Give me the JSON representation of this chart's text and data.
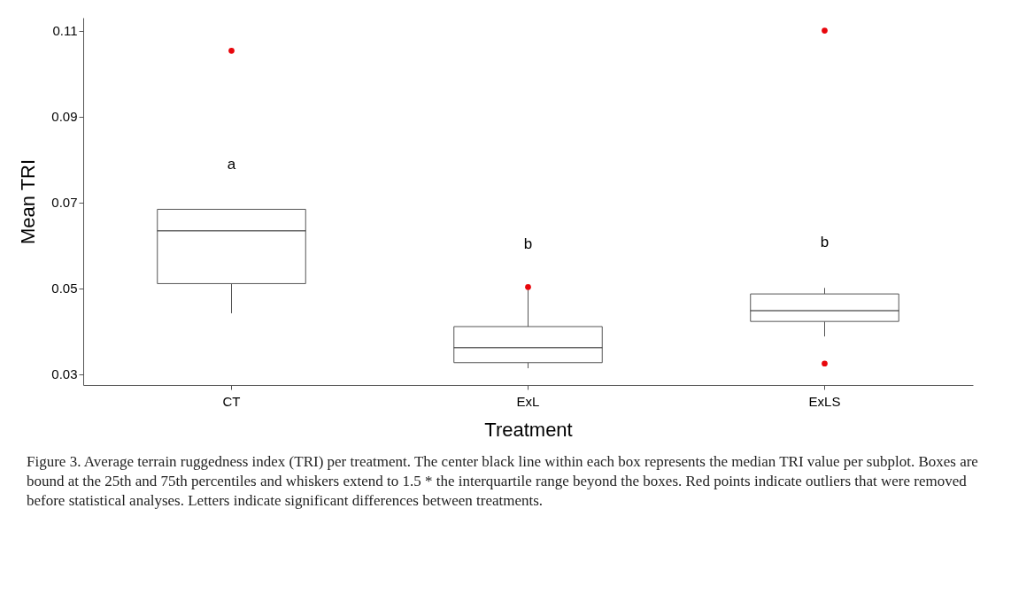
{
  "chart_data": {
    "type": "box",
    "xlabel": "Treatment",
    "ylabel": "Mean TRI",
    "categories": [
      "CT",
      "ExL",
      "ExLS"
    ],
    "boxes": [
      {
        "low": 0.0442,
        "q1": 0.0511,
        "median": 0.0634,
        "q3": 0.0684,
        "high": 0.0684,
        "outliers": [
          0.1053
        ]
      },
      {
        "low": 0.0314,
        "q1": 0.0327,
        "median": 0.0362,
        "q3": 0.0411,
        "high": 0.0497,
        "outliers": [
          0.0503
        ]
      },
      {
        "low": 0.0388,
        "q1": 0.0423,
        "median": 0.0448,
        "q3": 0.0487,
        "high": 0.0501,
        "outliers": [
          0.11,
          0.0325
        ]
      }
    ],
    "ylim": [
      0.0275,
      0.113
    ],
    "yticks": [
      0.03,
      0.05,
      0.07,
      0.09,
      0.11
    ],
    "grid": false,
    "annotations": [
      "a",
      "b",
      "b",
      "Figure 3. Average terrain ruggedness index (TRI) per treatment. The center black line within each box represents the median TRI value per subplot. Boxes are bound at the 25th and 75th percentiles and whiskers extend to 1.5 * the interquartile range beyond the boxes. Red points indicate outliers that were removed before statistical analyses. Letters indicate significant differences between treatments."
    ]
  }
}
